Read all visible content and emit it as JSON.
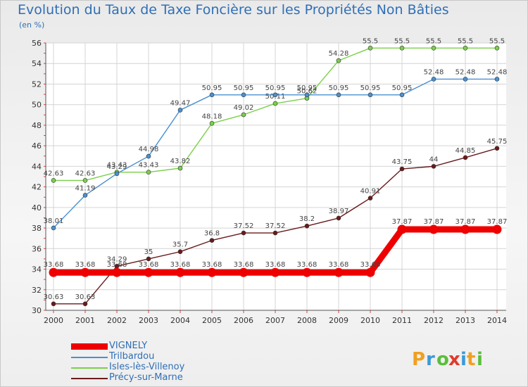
{
  "title": "Evolution du Taux de Taxe Foncière sur les Propriétés Non Bâties",
  "subtitle": "(en %)",
  "logo_text": "Proxiti",
  "chart_data": {
    "type": "line",
    "title": "Evolution du Taux de Taxe Foncière sur les Propriétés Non Bâties",
    "subtitle": "(en %)",
    "xlabel": "",
    "ylabel": "",
    "ylim": [
      30,
      56
    ],
    "yticks": [
      30,
      32,
      34,
      36,
      38,
      40,
      42,
      44,
      46,
      48,
      50,
      52,
      54,
      56
    ],
    "grid": true,
    "legend_position": "bottom-left",
    "categories": [
      "2000",
      "2001",
      "2002",
      "2003",
      "2004",
      "2005",
      "2006",
      "2007",
      "2008",
      "2009",
      "2010",
      "2011",
      "2012",
      "2013",
      "2014"
    ],
    "series": [
      {
        "name": "Isles-lès-Villenoy",
        "color": "#7ad04a",
        "values": [
          42.63,
          42.63,
          43.43,
          43.43,
          43.82,
          48.18,
          49.02,
          50.11,
          50.62,
          54.28,
          55.5,
          55.5,
          55.5,
          55.5,
          55.5
        ],
        "labels": [
          "42.63",
          "42.63",
          "43.43",
          "43.43",
          "43.82",
          "48.18",
          "49.02",
          "50.11",
          "50.62",
          "54.28",
          "55.5",
          "55.5",
          "55.5",
          "55.5",
          "55.5"
        ]
      },
      {
        "name": "Trilbardou",
        "color": "#4a90d0",
        "values": [
          38.01,
          41.19,
          43.29,
          44.98,
          49.47,
          50.95,
          50.95,
          50.95,
          50.95,
          50.95,
          50.95,
          50.95,
          52.48,
          52.48,
          52.48
        ],
        "labels": [
          "38.01",
          "41.19",
          "43.29",
          "44.98",
          "49.47",
          "50.95",
          "50.95",
          "50.95",
          "50.95",
          "50.95",
          "50.95",
          "50.95",
          "52.48",
          "52.48",
          "52.48"
        ]
      },
      {
        "name": "Précy-sur-Marne",
        "color": "#6a1a1a",
        "values": [
          30.63,
          30.63,
          34.29,
          35,
          35.7,
          36.8,
          37.52,
          37.52,
          38.2,
          38.97,
          40.91,
          43.75,
          44,
          44.85,
          45.75
        ],
        "labels": [
          "30.63",
          "30.63",
          "34.29",
          "35",
          "35.7",
          "36.8",
          "37.52",
          "37.52",
          "38.2",
          "38.97",
          "40.91",
          "43.75",
          "44",
          "44.85",
          "45.75"
        ]
      },
      {
        "name": "VIGNELY",
        "color": "#ee0000",
        "values": [
          33.68,
          33.68,
          33.68,
          33.68,
          33.68,
          33.68,
          33.68,
          33.68,
          33.68,
          33.68,
          33.68,
          37.87,
          37.87,
          37.87,
          37.87
        ],
        "labels": [
          "33.68",
          "33.68",
          "33.68",
          "33.68",
          "33.68",
          "33.68",
          "33.68",
          "33.68",
          "33.68",
          "33.68",
          "33.68",
          "37.87",
          "37.87",
          "37.87",
          "37.87"
        ]
      }
    ],
    "legend": [
      "VIGNELY",
      "Trilbardou",
      "Isles-lès-Villenoy",
      "Précy-sur-Marne"
    ]
  }
}
